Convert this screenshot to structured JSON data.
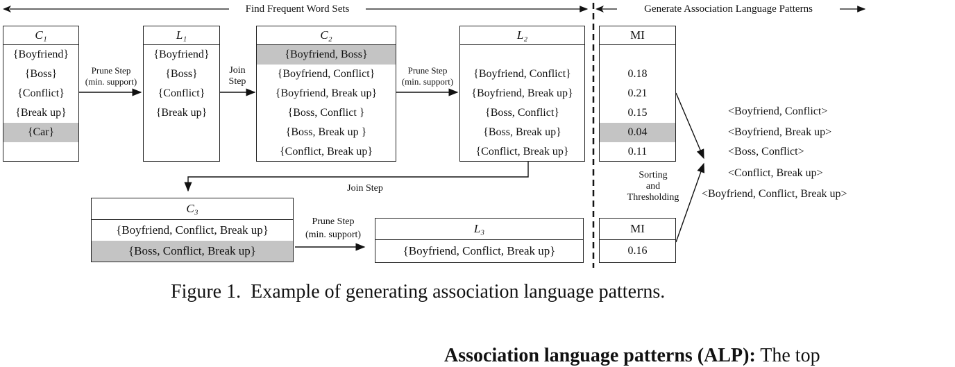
{
  "banner": {
    "left": "Find Frequent Word Sets",
    "right": "Generate Association Language Patterns"
  },
  "boxes": {
    "c1": {
      "title": "C₁",
      "rows": [
        "{Boyfriend}",
        "{Boss}",
        "{Conflict}",
        "{Break up}",
        "{Car}"
      ]
    },
    "l1": {
      "title": "L₁",
      "rows": [
        "{Boyfriend}",
        "{Boss}",
        "{Conflict}",
        "{Break up}"
      ]
    },
    "c2": {
      "title": "C₂",
      "rows": [
        "{Boyfriend, Boss}",
        "{Boyfriend, Conflict}",
        "{Boyfriend, Break up}",
        "{Boss, Conflict }",
        "{Boss, Break up }",
        "{Conflict, Break up}"
      ]
    },
    "l2": {
      "title": "L₂",
      "rows": [
        "{Boyfriend, Conflict}",
        "{Boyfriend, Break up}",
        "{Boss, Conflict}",
        "{Boss, Break up}",
        "{Conflict, Break up}"
      ]
    },
    "c3": {
      "title": "C₃",
      "rows": [
        "{Boyfriend, Conflict, Break up}",
        "{Boss, Conflict, Break up}"
      ]
    },
    "l3": {
      "title": "L₃",
      "rows": [
        "{Boyfriend, Conflict, Break up}"
      ]
    },
    "mi1": {
      "title": "MI",
      "rows": [
        "0.18",
        "0.21",
        "0.15",
        "0.04",
        "0.11"
      ]
    },
    "mi2": {
      "title": "MI",
      "rows": [
        "0.16"
      ]
    }
  },
  "steps": {
    "prune1": [
      "Prune Step",
      "(min. support)"
    ],
    "join1": [
      "Join",
      "Step"
    ],
    "prune2": [
      "Prune Step",
      "(min. support)"
    ],
    "join2": "Join Step",
    "prune3": [
      "Prune Step",
      "(min. support)"
    ],
    "sorting": [
      "Sorting",
      "and",
      "Thresholding"
    ]
  },
  "results": [
    "<Boyfriend, Conflict>",
    "<Boyfriend, Break up>",
    "<Boss, Conflict>",
    "<Conflict, Break up>",
    "<Boyfriend, Conflict, Break up>"
  ],
  "caption": "Figure 1.  Example of generating association language patterns.",
  "body_text": "Association language patterns (ALP): The top"
}
